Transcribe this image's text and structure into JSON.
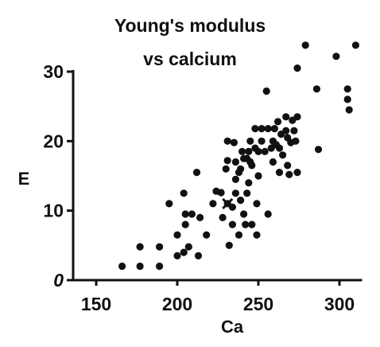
{
  "chart_data": {
    "type": "scatter",
    "title_lines": [
      "Young's modulus",
      "vs calcium"
    ],
    "xlabel": "Ca",
    "ylabel": "E",
    "xlim": [
      145,
      312
    ],
    "ylim": [
      0,
      34
    ],
    "xticks": [
      150,
      200,
      250,
      300
    ],
    "yticks": [
      0,
      10,
      20,
      30
    ],
    "grid": false,
    "legend": "none",
    "marker_color": "#111111",
    "points": [
      [
        166,
        2
      ],
      [
        177,
        2
      ],
      [
        177,
        4.8
      ],
      [
        189,
        2
      ],
      [
        189,
        4.8
      ],
      [
        195,
        11
      ],
      [
        200,
        3.5
      ],
      [
        200,
        6.5
      ],
      [
        204,
        12.5
      ],
      [
        205,
        8
      ],
      [
        204,
        4
      ],
      [
        207,
        4.8
      ],
      [
        205,
        9.5
      ],
      [
        209,
        9.5
      ],
      [
        212,
        15.5
      ],
      [
        213,
        3.5
      ],
      [
        214,
        9
      ],
      [
        218,
        6.5
      ],
      [
        222,
        11
      ],
      [
        224,
        12.8
      ],
      [
        227,
        12.6
      ],
      [
        228,
        9
      ],
      [
        230,
        16
      ],
      [
        231,
        17.2
      ],
      [
        231,
        20
      ],
      [
        231,
        11
      ],
      [
        232,
        5
      ],
      [
        234,
        8
      ],
      [
        234,
        10.5
      ],
      [
        235,
        19.8
      ],
      [
        236,
        12.5
      ],
      [
        236,
        17
      ],
      [
        236,
        14.5
      ],
      [
        238,
        6.5
      ],
      [
        238,
        15.5
      ],
      [
        239,
        11.5
      ],
      [
        239,
        16
      ],
      [
        240,
        18.5
      ],
      [
        241,
        17.5
      ],
      [
        241,
        9.5
      ],
      [
        242,
        8
      ],
      [
        243,
        17.5
      ],
      [
        243,
        12.5
      ],
      [
        244,
        14
      ],
      [
        245,
        17
      ],
      [
        244,
        18.5
      ],
      [
        245,
        20
      ],
      [
        246,
        16.5
      ],
      [
        246,
        8
      ],
      [
        248,
        19
      ],
      [
        248,
        21.8
      ],
      [
        249,
        6.5
      ],
      [
        249,
        11
      ],
      [
        250,
        15
      ],
      [
        250,
        18.5
      ],
      [
        252,
        20
      ],
      [
        252,
        21.8
      ],
      [
        254,
        18.5
      ],
      [
        255,
        27.2
      ],
      [
        256,
        21.8
      ],
      [
        256,
        9.5
      ],
      [
        258,
        19
      ],
      [
        259,
        17
      ],
      [
        259,
        20
      ],
      [
        260,
        21.8
      ],
      [
        261,
        19.5
      ],
      [
        262,
        22.8
      ],
      [
        263,
        19
      ],
      [
        263,
        15.5
      ],
      [
        264,
        21
      ],
      [
        265,
        18
      ],
      [
        267,
        21.5
      ],
      [
        267,
        23.5
      ],
      [
        268,
        20.5
      ],
      [
        268,
        16.5
      ],
      [
        269,
        15.2
      ],
      [
        270,
        19.8
      ],
      [
        271,
        23
      ],
      [
        272,
        21.5
      ],
      [
        273,
        20
      ],
      [
        274,
        23.5
      ],
      [
        274,
        15.5
      ],
      [
        274,
        30.5
      ],
      [
        279,
        33.8
      ],
      [
        286,
        27.5
      ],
      [
        287,
        18.8
      ],
      [
        298,
        32.2
      ],
      [
        305,
        26
      ],
      [
        305,
        27.5
      ],
      [
        306,
        24.5
      ],
      [
        310,
        33.8
      ]
    ],
    "cross_markers": [
      [
        231,
        11
      ]
    ]
  }
}
